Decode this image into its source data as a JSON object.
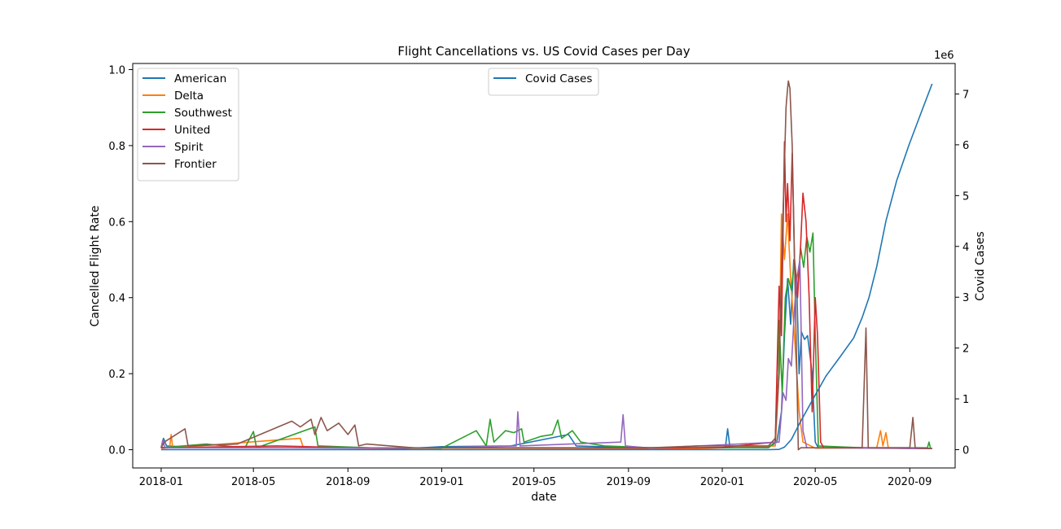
{
  "chart_data": {
    "type": "line",
    "title": "Flight Cancellations vs. US Covid Cases per Day",
    "xlabel": "date",
    "ylabel": "Cancelled Flight Rate",
    "y2label": "Covid Cases",
    "y2_offset_text": "1e6",
    "xlim": [
      "2017-11-25",
      "2020-10-30"
    ],
    "ylim": [
      -0.048,
      1.016
    ],
    "y2lim": [
      -0.36,
      7.6
    ],
    "x_ticks": [
      "2018-01",
      "2018-05",
      "2018-09",
      "2019-01",
      "2019-05",
      "2019-09",
      "2020-01",
      "2020-05",
      "2020-09"
    ],
    "y_ticks": [
      "0.0",
      "0.2",
      "0.4",
      "0.6",
      "0.8",
      "1.0"
    ],
    "y2_ticks": [
      "0",
      "1",
      "2",
      "3",
      "4",
      "5",
      "6",
      "7"
    ],
    "legend_left": {
      "placement": "upper left"
    },
    "legend_right": {
      "placement": "upper center"
    },
    "grid": false,
    "series": [
      {
        "name": "American",
        "color": "#1f77b4",
        "axis": "left",
        "points": [
          [
            "2018-01-01",
            0.005
          ],
          [
            "2018-01-04",
            0.03
          ],
          [
            "2018-01-08",
            0.01
          ],
          [
            "2018-02-15",
            0.006
          ],
          [
            "2018-06-15",
            0.005
          ],
          [
            "2018-09-30",
            0.004
          ],
          [
            "2018-11-15",
            0.003
          ],
          [
            "2019-01-01",
            0.008
          ],
          [
            "2019-04-01",
            0.01
          ],
          [
            "2019-06-15",
            0.04
          ],
          [
            "2019-06-25",
            0.01
          ],
          [
            "2019-09-15",
            0.005
          ],
          [
            "2020-01-05",
            0.005
          ],
          [
            "2020-01-08",
            0.055
          ],
          [
            "2020-01-11",
            0.006
          ],
          [
            "2020-03-01",
            0.005
          ],
          [
            "2020-03-12",
            0.02
          ],
          [
            "2020-03-18",
            0.1
          ],
          [
            "2020-03-22",
            0.3
          ],
          [
            "2020-03-26",
            0.45
          ],
          [
            "2020-03-30",
            0.33
          ],
          [
            "2020-04-03",
            0.5
          ],
          [
            "2020-04-07",
            0.42
          ],
          [
            "2020-04-10",
            0.2
          ],
          [
            "2020-04-13",
            0.31
          ],
          [
            "2020-04-17",
            0.29
          ],
          [
            "2020-04-21",
            0.3
          ],
          [
            "2020-04-27",
            0.2
          ],
          [
            "2020-05-01",
            0.02
          ],
          [
            "2020-05-05",
            0.005
          ],
          [
            "2020-07-01",
            0.005
          ],
          [
            "2020-09-30",
            0.003
          ]
        ]
      },
      {
        "name": "Delta",
        "color": "#ff7f0e",
        "axis": "left",
        "points": [
          [
            "2018-01-01",
            0.004
          ],
          [
            "2018-01-12",
            0.005
          ],
          [
            "2018-01-14",
            0.04
          ],
          [
            "2018-01-16",
            0.005
          ],
          [
            "2018-07-01",
            0.03
          ],
          [
            "2018-07-05",
            0.005
          ],
          [
            "2019-12-01",
            0.003
          ],
          [
            "2020-03-10",
            0.01
          ],
          [
            "2020-03-15",
            0.2
          ],
          [
            "2020-03-18",
            0.62
          ],
          [
            "2020-03-22",
            0.5
          ],
          [
            "2020-03-26",
            0.62
          ],
          [
            "2020-03-30",
            0.45
          ],
          [
            "2020-04-04",
            0.3
          ],
          [
            "2020-04-10",
            0.1
          ],
          [
            "2020-04-15",
            0.02
          ],
          [
            "2020-05-01",
            0.004
          ],
          [
            "2020-07-20",
            0.005
          ],
          [
            "2020-07-25",
            0.05
          ],
          [
            "2020-07-28",
            0.01
          ],
          [
            "2020-08-01",
            0.045
          ],
          [
            "2020-08-04",
            0.005
          ],
          [
            "2020-09-30",
            0.003
          ]
        ]
      },
      {
        "name": "Southwest",
        "color": "#2ca02c",
        "axis": "left",
        "points": [
          [
            "2018-01-01",
            0.005
          ],
          [
            "2018-03-01",
            0.015
          ],
          [
            "2018-04-20",
            0.005
          ],
          [
            "2018-05-01",
            0.048
          ],
          [
            "2018-05-05",
            0.005
          ],
          [
            "2018-07-20",
            0.06
          ],
          [
            "2018-07-24",
            0.01
          ],
          [
            "2018-09-30",
            0.005
          ],
          [
            "2019-01-01",
            0.004
          ],
          [
            "2019-02-15",
            0.05
          ],
          [
            "2019-02-28",
            0.01
          ],
          [
            "2019-03-05",
            0.08
          ],
          [
            "2019-03-10",
            0.02
          ],
          [
            "2019-03-25",
            0.05
          ],
          [
            "2019-04-05",
            0.045
          ],
          [
            "2019-04-15",
            0.055
          ],
          [
            "2019-04-18",
            0.02
          ],
          [
            "2019-05-10",
            0.035
          ],
          [
            "2019-05-25",
            0.04
          ],
          [
            "2019-06-01",
            0.078
          ],
          [
            "2019-06-06",
            0.03
          ],
          [
            "2019-06-20",
            0.05
          ],
          [
            "2019-07-01",
            0.02
          ],
          [
            "2019-08-01",
            0.01
          ],
          [
            "2019-09-30",
            0.005
          ],
          [
            "2020-01-01",
            0.005
          ],
          [
            "2020-03-01",
            0.006
          ],
          [
            "2020-03-10",
            0.02
          ],
          [
            "2020-03-15",
            0.34
          ],
          [
            "2020-03-19",
            0.15
          ],
          [
            "2020-03-23",
            0.4
          ],
          [
            "2020-03-27",
            0.45
          ],
          [
            "2020-03-31",
            0.42
          ],
          [
            "2020-04-04",
            0.5
          ],
          [
            "2020-04-08",
            0.42
          ],
          [
            "2020-04-12",
            0.53
          ],
          [
            "2020-04-16",
            0.48
          ],
          [
            "2020-04-20",
            0.56
          ],
          [
            "2020-04-24",
            0.52
          ],
          [
            "2020-04-28",
            0.57
          ],
          [
            "2020-05-01",
            0.3
          ],
          [
            "2020-05-05",
            0.01
          ],
          [
            "2020-07-01",
            0.005
          ],
          [
            "2020-09-24",
            0.005
          ],
          [
            "2020-09-26",
            0.02
          ],
          [
            "2020-09-28",
            0.003
          ]
        ]
      },
      {
        "name": "United",
        "color": "#d62728",
        "axis": "left",
        "points": [
          [
            "2018-01-01",
            0.005
          ],
          [
            "2018-06-01",
            0.01
          ],
          [
            "2018-09-30",
            0.004
          ],
          [
            "2019-01-01",
            0.005
          ],
          [
            "2019-09-30",
            0.004
          ],
          [
            "2020-01-01",
            0.006
          ],
          [
            "2020-03-10",
            0.02
          ],
          [
            "2020-03-15",
            0.43
          ],
          [
            "2020-03-18",
            0.3
          ],
          [
            "2020-03-22",
            0.81
          ],
          [
            "2020-03-24",
            0.6
          ],
          [
            "2020-03-26",
            0.7
          ],
          [
            "2020-03-29",
            0.55
          ],
          [
            "2020-04-01",
            0.78
          ],
          [
            "2020-04-04",
            0.5
          ],
          [
            "2020-04-08",
            0.4
          ],
          [
            "2020-04-12",
            0.54
          ],
          [
            "2020-04-15",
            0.675
          ],
          [
            "2020-04-19",
            0.6
          ],
          [
            "2020-04-23",
            0.4
          ],
          [
            "2020-04-27",
            0.1
          ],
          [
            "2020-05-01",
            0.4
          ],
          [
            "2020-05-04",
            0.3
          ],
          [
            "2020-05-08",
            0.02
          ],
          [
            "2020-05-12",
            0.005
          ],
          [
            "2020-07-01",
            0.005
          ],
          [
            "2020-09-30",
            0.003
          ]
        ]
      },
      {
        "name": "Spirit",
        "color": "#9467bd",
        "axis": "left",
        "points": [
          [
            "2018-01-01",
            0.004
          ],
          [
            "2018-01-03",
            0.025
          ],
          [
            "2018-01-06",
            0.005
          ],
          [
            "2018-06-01",
            0.005
          ],
          [
            "2019-01-01",
            0.005
          ],
          [
            "2019-04-08",
            0.01
          ],
          [
            "2019-04-10",
            0.1
          ],
          [
            "2019-04-13",
            0.01
          ],
          [
            "2019-08-22",
            0.02
          ],
          [
            "2019-08-25",
            0.092
          ],
          [
            "2019-08-28",
            0.01
          ],
          [
            "2019-09-30",
            0.004
          ],
          [
            "2020-03-15",
            0.02
          ],
          [
            "2020-03-20",
            0.15
          ],
          [
            "2020-03-24",
            0.13
          ],
          [
            "2020-03-27",
            0.24
          ],
          [
            "2020-03-31",
            0.22
          ],
          [
            "2020-04-04",
            0.37
          ],
          [
            "2020-04-07",
            0.45
          ],
          [
            "2020-04-11",
            0.5
          ],
          [
            "2020-04-15",
            0.05
          ],
          [
            "2020-04-20",
            0.005
          ],
          [
            "2020-09-30",
            0.003
          ]
        ]
      },
      {
        "name": "Frontier",
        "color": "#8c564b",
        "axis": "left",
        "points": [
          [
            "2018-01-01",
            0.005
          ],
          [
            "2018-01-05",
            0.02
          ],
          [
            "2018-02-01",
            0.055
          ],
          [
            "2018-02-05",
            0.01
          ],
          [
            "2018-04-10",
            0.015
          ],
          [
            "2018-06-20",
            0.075
          ],
          [
            "2018-07-01",
            0.06
          ],
          [
            "2018-07-15",
            0.08
          ],
          [
            "2018-07-20",
            0.04
          ],
          [
            "2018-07-28",
            0.085
          ],
          [
            "2018-08-05",
            0.05
          ],
          [
            "2018-08-20",
            0.07
          ],
          [
            "2018-09-01",
            0.04
          ],
          [
            "2018-09-10",
            0.065
          ],
          [
            "2018-09-15",
            0.01
          ],
          [
            "2018-09-25",
            0.015
          ],
          [
            "2018-12-01",
            0.004
          ],
          [
            "2019-01-01",
            0.005
          ],
          [
            "2019-09-30",
            0.005
          ],
          [
            "2019-12-01",
            0.01
          ],
          [
            "2020-03-01",
            0.01
          ],
          [
            "2020-03-10",
            0.03
          ],
          [
            "2020-03-15",
            0.2
          ],
          [
            "2020-03-19",
            0.55
          ],
          [
            "2020-03-22",
            0.75
          ],
          [
            "2020-03-24",
            0.9
          ],
          [
            "2020-03-26",
            0.95
          ],
          [
            "2020-03-27",
            0.97
          ],
          [
            "2020-03-29",
            0.95
          ],
          [
            "2020-04-01",
            0.8
          ],
          [
            "2020-04-03",
            0.6
          ],
          [
            "2020-04-07",
            0.2
          ],
          [
            "2020-04-09",
            0.0
          ],
          [
            "2020-04-12",
            0.005
          ],
          [
            "2020-07-01",
            0.005
          ],
          [
            "2020-07-06",
            0.32
          ],
          [
            "2020-07-09",
            0.005
          ],
          [
            "2020-09-01",
            0.005
          ],
          [
            "2020-09-05",
            0.085
          ],
          [
            "2020-09-08",
            0.005
          ],
          [
            "2020-09-30",
            0.003
          ]
        ]
      },
      {
        "name": "Covid Cases",
        "color": "#1f77b4",
        "axis": "right",
        "points": [
          [
            "2018-01-01",
            0
          ],
          [
            "2020-03-01",
            0
          ],
          [
            "2020-03-15",
            0.005
          ],
          [
            "2020-03-22",
            0.05
          ],
          [
            "2020-03-31",
            0.2
          ],
          [
            "2020-04-10",
            0.5
          ],
          [
            "2020-04-30",
            1.05
          ],
          [
            "2020-05-15",
            1.45
          ],
          [
            "2020-06-01",
            1.8
          ],
          [
            "2020-06-20",
            2.2
          ],
          [
            "2020-07-01",
            2.6
          ],
          [
            "2020-07-10",
            3.0
          ],
          [
            "2020-07-20",
            3.6
          ],
          [
            "2020-08-01",
            4.5
          ],
          [
            "2020-08-15",
            5.3
          ],
          [
            "2020-08-31",
            6.0
          ],
          [
            "2020-09-15",
            6.6
          ],
          [
            "2020-09-30",
            7.2
          ]
        ]
      }
    ]
  }
}
